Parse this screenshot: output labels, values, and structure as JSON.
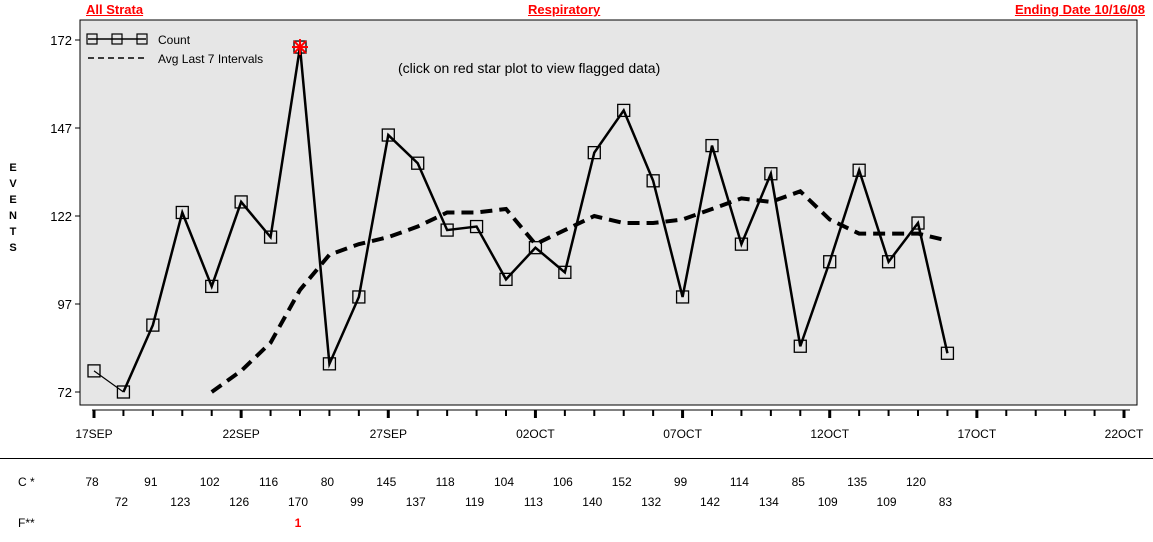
{
  "header": {
    "left": "All Strata",
    "center": "Respiratory",
    "right": "Ending Date 10/16/08"
  },
  "colors": {
    "header": "#ff0000",
    "plot_background": "#e6e6e6",
    "line": "#000000",
    "flag": "#ff0000"
  },
  "annotation": "(click on red star plot to view flagged data)",
  "ylabel_letters": [
    "E",
    "V",
    "E",
    "N",
    "T",
    "S"
  ],
  "chart_data": {
    "type": "line",
    "x_ticks": [
      "17SEP",
      "22SEP",
      "27SEP",
      "02OCT",
      "07OCT",
      "12OCT",
      "17OCT",
      "22OCT"
    ],
    "x": [
      "17SEP",
      "18SEP",
      "19SEP",
      "20SEP",
      "21SEP",
      "22SEP",
      "23SEP",
      "24SEP",
      "25SEP",
      "26SEP",
      "27SEP",
      "28SEP",
      "29SEP",
      "30SEP",
      "01OCT",
      "02OCT",
      "03OCT",
      "04OCT",
      "05OCT",
      "06OCT",
      "07OCT",
      "08OCT",
      "09OCT",
      "10OCT",
      "11OCT",
      "12OCT",
      "13OCT",
      "14OCT",
      "15OCT",
      "16OCT"
    ],
    "ylim": [
      72,
      172
    ],
    "y_ticks": [
      72,
      97,
      122,
      147,
      172
    ],
    "legend": {
      "placement": "top-left",
      "count_label": "Count",
      "avg_label": "Avg Last 7 Intervals"
    },
    "series": [
      {
        "name": "Count",
        "values": [
          78,
          72,
          91,
          123,
          102,
          126,
          116,
          170,
          80,
          99,
          145,
          137,
          118,
          119,
          104,
          113,
          106,
          140,
          152,
          132,
          99,
          142,
          114,
          134,
          85,
          109,
          135,
          109,
          120,
          83
        ]
      },
      {
        "name": "Avg Last 7 Intervals",
        "values": [
          null,
          null,
          null,
          null,
          72,
          78,
          86,
          101,
          111,
          114,
          116,
          119,
          123,
          123,
          124,
          114,
          118,
          122,
          120,
          120,
          121,
          124,
          127,
          126,
          129,
          121,
          117,
          117,
          117,
          115
        ]
      }
    ],
    "flagged_index": 7
  },
  "table": {
    "row_c_label": "C *",
    "row_f_label": "F**",
    "flag_values": [
      "",
      "",
      "",
      "",
      "",
      "",
      "",
      "1",
      "",
      "",
      "",
      "",
      "",
      "",
      "",
      "",
      "",
      "",
      "",
      "",
      "",
      "",
      "",
      "",
      "",
      "",
      "",
      "",
      "",
      ""
    ]
  }
}
